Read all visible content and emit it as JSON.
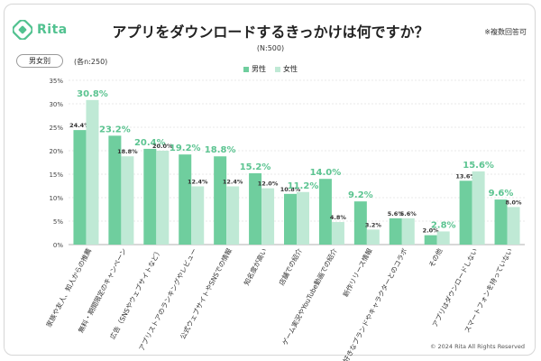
{
  "header": {
    "brand": "Rita",
    "title": "アプリをダウンロードするきっかけは何ですか？",
    "sample": "(N:500)",
    "note": "※複数回答可",
    "segment_tag": "男女別",
    "base_note": "(各n:250)",
    "copyright": "© 2024 Rita All Rights Reserved"
  },
  "colors": {
    "male": "#6fce9e",
    "female": "#bfe9d5",
    "highlight_label": "#5cc491",
    "logo": "#52c290"
  },
  "chart_data": {
    "type": "bar",
    "categories": [
      "家族や友人、知人からの推薦",
      "無料・期間限定のキャンペーン",
      "広告（SNSやウェブサイトなど）",
      "アプリストアのランキングやレビュー",
      "公式ウェブサイトやSNSでの情報",
      "知名度が高い",
      "店舗での紹介",
      "ゲーム実況やYouTube動画での紹介",
      "新作リリース情報",
      "好きなブランドやキャラクターとのコラボ",
      "その他",
      "アプリはダウンロードしない",
      "スマートフォンを持っていない"
    ],
    "series": [
      {
        "name": "男性",
        "values": [
          24.4,
          23.2,
          20.4,
          19.2,
          18.8,
          15.2,
          10.8,
          14.0,
          9.2,
          5.6,
          2.0,
          13.6,
          9.6
        ]
      },
      {
        "name": "女性",
        "values": [
          30.8,
          18.8,
          20.0,
          12.4,
          12.4,
          12.0,
          11.2,
          4.8,
          3.2,
          5.6,
          2.8,
          15.6,
          8.0
        ]
      }
    ],
    "highlight": [
      [
        false,
        true
      ],
      [
        true,
        false
      ],
      [
        true,
        false
      ],
      [
        true,
        false
      ],
      [
        true,
        false
      ],
      [
        true,
        false
      ],
      [
        false,
        true
      ],
      [
        true,
        false
      ],
      [
        true,
        false
      ],
      [
        false,
        false
      ],
      [
        false,
        true
      ],
      [
        false,
        true
      ],
      [
        true,
        false
      ]
    ],
    "value_labels": [
      [
        "24.4%",
        "30.8%"
      ],
      [
        "23.2%",
        "18.8%"
      ],
      [
        "20.4%",
        "20.0%"
      ],
      [
        "19.2%",
        "12.4%"
      ],
      [
        "18.8%",
        "12.4%"
      ],
      [
        "15.2%",
        "12.0%"
      ],
      [
        "10.8%",
        "11.2%"
      ],
      [
        "14.0%",
        "4.8%"
      ],
      [
        "9.2%",
        "3.2%"
      ],
      [
        "5.6%",
        "5.6%"
      ],
      [
        "2.0%",
        "2.8%"
      ],
      [
        "13.6%",
        "15.6%"
      ],
      [
        "9.6%",
        "8.0%"
      ]
    ],
    "yticks": [
      "0%",
      "5%",
      "10%",
      "15%",
      "20%",
      "25%",
      "30%",
      "35%"
    ],
    "ylim": [
      0,
      35
    ],
    "grid": true,
    "legend": "top-center"
  }
}
